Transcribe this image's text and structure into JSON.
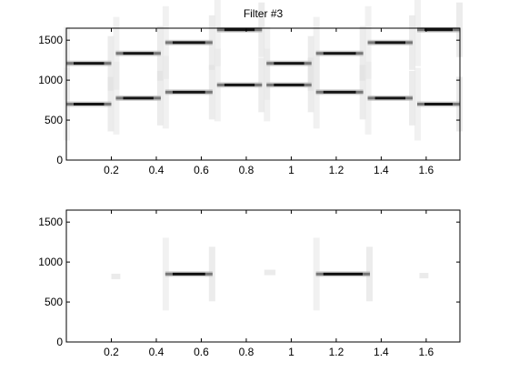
{
  "chart_data": [
    {
      "type": "heatmap",
      "title": "Filter #3",
      "xlim": [
        0,
        1.75
      ],
      "ylim": [
        0,
        1650
      ],
      "x_ticks": [
        0.2,
        0.4,
        0.6,
        0.8,
        1,
        1.2,
        1.4,
        1.6
      ],
      "x_tick_labels": [
        "0.2",
        "0.4",
        "0.6",
        "0.8",
        "1",
        "1.2",
        "1.4",
        "1.6"
      ],
      "y_ticks": [
        0,
        500,
        1000,
        1500
      ],
      "y_tick_labels": [
        "0",
        "500",
        "1000",
        "1500"
      ],
      "segments": [
        {
          "x0": 0.0,
          "x1": 0.2,
          "y": 700,
          "intensity": 0.92
        },
        {
          "x0": 0.0,
          "x1": 0.2,
          "y": 1210,
          "intensity": 0.92
        },
        {
          "x0": 0.22,
          "x1": 0.42,
          "y": 775,
          "intensity": 0.92
        },
        {
          "x0": 0.22,
          "x1": 0.42,
          "y": 1335,
          "intensity": 0.92
        },
        {
          "x0": 0.44,
          "x1": 0.65,
          "y": 850,
          "intensity": 0.92
        },
        {
          "x0": 0.44,
          "x1": 0.65,
          "y": 1470,
          "intensity": 0.92
        },
        {
          "x0": 0.67,
          "x1": 0.87,
          "y": 940,
          "intensity": 0.92
        },
        {
          "x0": 0.67,
          "x1": 0.87,
          "y": 1630,
          "intensity": 0.92
        },
        {
          "x0": 0.89,
          "x1": 1.09,
          "y": 940,
          "intensity": 0.92
        },
        {
          "x0": 0.89,
          "x1": 1.09,
          "y": 1210,
          "intensity": 0.92
        },
        {
          "x0": 1.11,
          "x1": 1.32,
          "y": 850,
          "intensity": 0.92
        },
        {
          "x0": 1.11,
          "x1": 1.32,
          "y": 1335,
          "intensity": 0.92
        },
        {
          "x0": 1.34,
          "x1": 1.54,
          "y": 775,
          "intensity": 0.92
        },
        {
          "x0": 1.34,
          "x1": 1.54,
          "y": 1470,
          "intensity": 0.92
        },
        {
          "x0": 1.56,
          "x1": 1.75,
          "y": 700,
          "intensity": 0.92
        },
        {
          "x0": 1.56,
          "x1": 1.75,
          "y": 1630,
          "intensity": 0.92
        }
      ]
    },
    {
      "type": "heatmap",
      "title": "",
      "xlim": [
        0,
        1.75
      ],
      "ylim": [
        0,
        1650
      ],
      "x_ticks": [
        0.2,
        0.4,
        0.6,
        0.8,
        1,
        1.2,
        1.4,
        1.6
      ],
      "x_tick_labels": [
        "0.2",
        "0.4",
        "0.6",
        "0.8",
        "1",
        "1.2",
        "1.4",
        "1.6"
      ],
      "y_ticks": [
        0,
        500,
        1000,
        1500
      ],
      "y_tick_labels": [
        "0",
        "500",
        "1000",
        "1500"
      ],
      "segments": [
        {
          "x0": 0.2,
          "x1": 0.24,
          "y": 820,
          "intensity": 0.08
        },
        {
          "x0": 0.44,
          "x1": 0.65,
          "y": 850,
          "intensity": 0.95
        },
        {
          "x0": 0.88,
          "x1": 0.93,
          "y": 870,
          "intensity": 0.08
        },
        {
          "x0": 1.11,
          "x1": 1.35,
          "y": 850,
          "intensity": 0.95
        },
        {
          "x0": 1.57,
          "x1": 1.61,
          "y": 830,
          "intensity": 0.08
        }
      ]
    }
  ]
}
